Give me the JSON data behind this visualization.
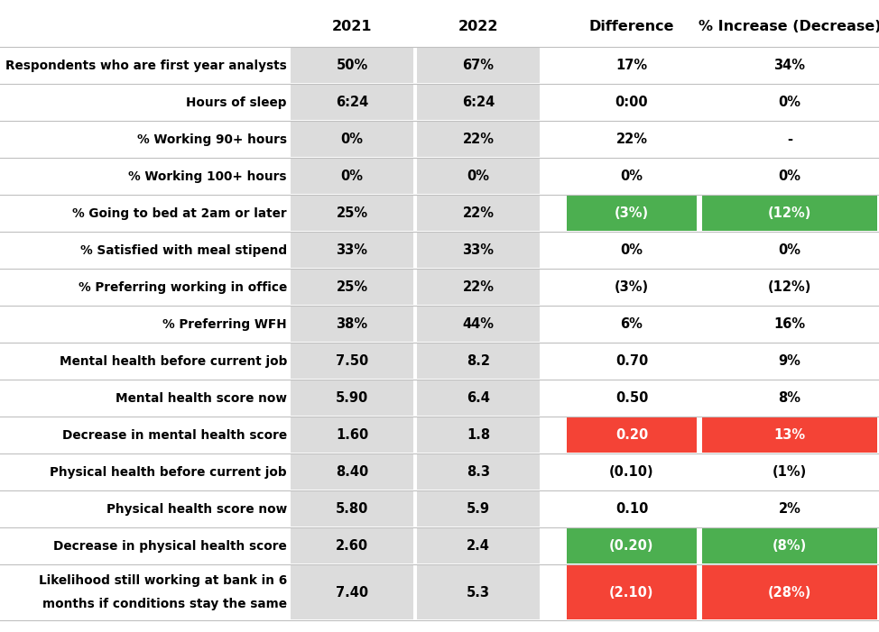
{
  "rows": [
    {
      "label": "Respondents who are first year analysts",
      "val2021": "50%",
      "val2022": "67%",
      "diff": "17%",
      "pct": "34%",
      "diff_color": null,
      "pct_color": null,
      "multiline": false
    },
    {
      "label": "Hours of sleep",
      "val2021": "6:24",
      "val2022": "6:24",
      "diff": "0:00",
      "pct": "0%",
      "diff_color": null,
      "pct_color": null,
      "multiline": false
    },
    {
      "label": "% Working 90+ hours",
      "val2021": "0%",
      "val2022": "22%",
      "diff": "22%",
      "pct": "-",
      "diff_color": null,
      "pct_color": null,
      "multiline": false
    },
    {
      "label": "% Working 100+ hours",
      "val2021": "0%",
      "val2022": "0%",
      "diff": "0%",
      "pct": "0%",
      "diff_color": null,
      "pct_color": null,
      "multiline": false
    },
    {
      "label": "% Going to bed at 2am or later",
      "val2021": "25%",
      "val2022": "22%",
      "diff": "(3%)",
      "pct": "(12%)",
      "diff_color": "#4CAF50",
      "pct_color": "#4CAF50",
      "multiline": false
    },
    {
      "label": "% Satisfied with meal stipend",
      "val2021": "33%",
      "val2022": "33%",
      "diff": "0%",
      "pct": "0%",
      "diff_color": null,
      "pct_color": null,
      "multiline": false
    },
    {
      "label": "% Preferring working in office",
      "val2021": "25%",
      "val2022": "22%",
      "diff": "(3%)",
      "pct": "(12%)",
      "diff_color": null,
      "pct_color": null,
      "multiline": false
    },
    {
      "label": "% Preferring WFH",
      "val2021": "38%",
      "val2022": "44%",
      "diff": "6%",
      "pct": "16%",
      "diff_color": null,
      "pct_color": null,
      "multiline": false
    },
    {
      "label": "Mental health before current job",
      "val2021": "7.50",
      "val2022": "8.2",
      "diff": "0.70",
      "pct": "9%",
      "diff_color": null,
      "pct_color": null,
      "multiline": false
    },
    {
      "label": "Mental health score now",
      "val2021": "5.90",
      "val2022": "6.4",
      "diff": "0.50",
      "pct": "8%",
      "diff_color": null,
      "pct_color": null,
      "multiline": false
    },
    {
      "label": "Decrease in mental health score",
      "val2021": "1.60",
      "val2022": "1.8",
      "diff": "0.20",
      "pct": "13%",
      "diff_color": "#F44336",
      "pct_color": "#F44336",
      "multiline": false
    },
    {
      "label": "Physical health before current job",
      "val2021": "8.40",
      "val2022": "8.3",
      "diff": "(0.10)",
      "pct": "(1%)",
      "diff_color": null,
      "pct_color": null,
      "multiline": false
    },
    {
      "label": "Physical health score now",
      "val2021": "5.80",
      "val2022": "5.9",
      "diff": "0.10",
      "pct": "2%",
      "diff_color": null,
      "pct_color": null,
      "multiline": false
    },
    {
      "label": "Decrease in physical health score",
      "val2021": "2.60",
      "val2022": "2.4",
      "diff": "(0.20)",
      "pct": "(8%)",
      "diff_color": "#4CAF50",
      "pct_color": "#4CAF50",
      "multiline": false
    },
    {
      "label": "Likelihood still working at bank in 6\nmonths if conditions stay the same",
      "val2021": "7.40",
      "val2022": "5.3",
      "diff": "(2.10)",
      "pct": "(28%)",
      "diff_color": "#F44336",
      "pct_color": "#F44336",
      "multiline": true
    }
  ],
  "shade_color": "#dcdcdc",
  "text_color_normal": "#000000",
  "text_color_highlight": "#ffffff",
  "label_fontsize": 9.8,
  "value_fontsize": 10.5,
  "header_fontsize": 11.5,
  "fig_width": 9.74,
  "fig_height": 7.01,
  "dpi": 100
}
